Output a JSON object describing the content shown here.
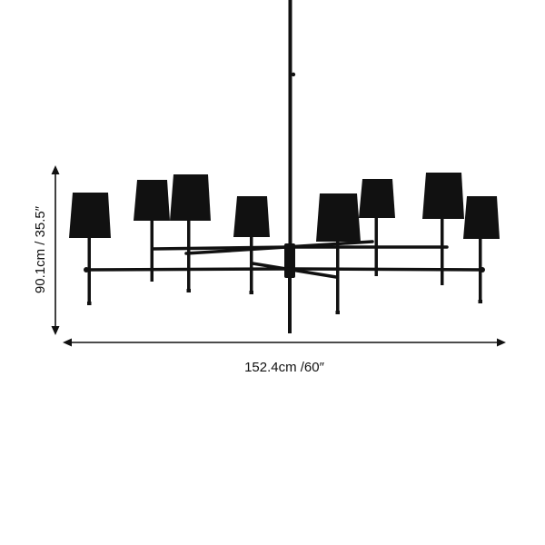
{
  "product": {
    "image_name": "eight-light chandelier silhouette",
    "color": "#111111"
  },
  "dimensions": {
    "height_label": "90.1cm / 35.5″",
    "width_label": "152.4cm /60″"
  }
}
